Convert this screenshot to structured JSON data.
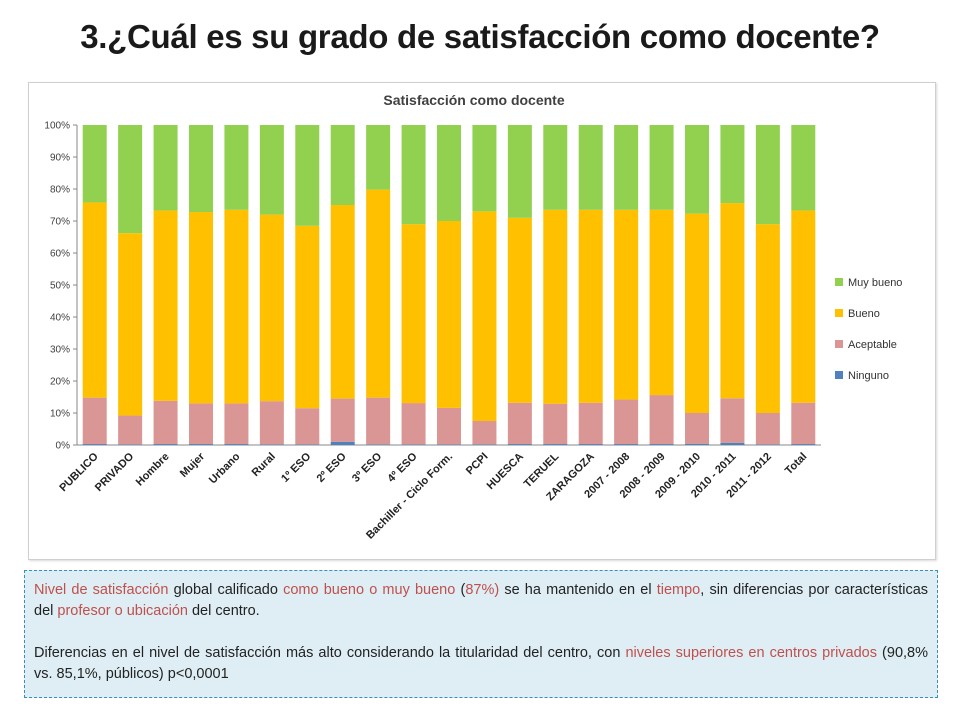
{
  "slide": {
    "title": "3.¿Cuál es su grado de satisfacción como docente?"
  },
  "chart_data": {
    "type": "bar",
    "stacked": true,
    "percent": true,
    "title": "Satisfacción como docente",
    "categories": [
      "PUBLICO",
      "PRIVADO",
      "Hombre",
      "Mujer",
      "Urbano",
      "Rural",
      "1º ESO",
      "2º ESO",
      "3º ESO",
      "4º ESO",
      "Bachiller - Ciclo Form.",
      "PCPI",
      "HUESCA",
      "TERUEL",
      "ZARAGOZA",
      "2007 - 2008",
      "2008 - 2009",
      "2009 - 2010",
      "2010 - 2011",
      "2011 - 2012",
      "Total"
    ],
    "series": [
      {
        "name": "Ninguno",
        "color": "#4f81bd",
        "values": [
          0.3,
          0.2,
          0.3,
          0.3,
          0.3,
          0.2,
          0.2,
          1.0,
          0.2,
          0.2,
          0.2,
          0.2,
          0.3,
          0.3,
          0.3,
          0.3,
          0.3,
          0.4,
          0.7,
          0.2,
          0.3
        ]
      },
      {
        "name": "Aceptable",
        "color": "#d99694",
        "values": [
          14.5,
          9.0,
          13.5,
          12.7,
          12.7,
          13.5,
          11.3,
          13.5,
          14.6,
          12.9,
          11.4,
          7.3,
          12.9,
          12.6,
          12.9,
          13.9,
          15.3,
          9.6,
          13.9,
          9.8,
          12.9
        ]
      },
      {
        "name": "Bueno",
        "color": "#ffc000",
        "values": [
          61.0,
          57.0,
          59.5,
          59.8,
          60.5,
          58.3,
          57.0,
          60.5,
          65.0,
          55.9,
          58.4,
          65.5,
          57.8,
          60.6,
          60.3,
          59.3,
          57.9,
          62.3,
          61.0,
          59.0,
          60.1
        ]
      },
      {
        "name": "Muy bueno",
        "color": "#92d050",
        "values": [
          24.2,
          33.8,
          26.7,
          27.2,
          26.5,
          28.0,
          31.5,
          25.0,
          20.2,
          31.0,
          30.0,
          27.0,
          29.0,
          26.5,
          26.5,
          26.5,
          26.5,
          27.7,
          24.4,
          31.0,
          26.7
        ]
      }
    ],
    "ylim": [
      0,
      100
    ],
    "yticks": [
      "0%",
      "10%",
      "20%",
      "30%",
      "40%",
      "50%",
      "60%",
      "70%",
      "80%",
      "90%",
      "100%"
    ],
    "grid": false,
    "legend_position": "right",
    "legend_order": [
      "Muy bueno",
      "Bueno",
      "Aceptable",
      "Ninguno"
    ]
  },
  "note": {
    "p1": [
      {
        "text": "Nivel de satisfacción",
        "hl": true
      },
      {
        "text": " global calificado ",
        "hl": false
      },
      {
        "text": "como bueno o muy bueno",
        "hl": true
      },
      {
        "text": " (",
        "hl": false
      },
      {
        "text": "87%)",
        "hl": true
      },
      {
        "text": " se ha mantenido en el ",
        "hl": false
      },
      {
        "text": "tiempo",
        "hl": true
      },
      {
        "text": ", sin diferencias por características del ",
        "hl": false
      },
      {
        "text": "profesor o ubicación",
        "hl": true
      },
      {
        "text": " del centro.",
        "hl": false
      }
    ],
    "p2": [
      {
        "text": "Diferencias en el nivel de satisfacción más alto considerando la titularidad del centro, con ",
        "hl": false
      },
      {
        "text": "niveles superiores en centros privados",
        "hl": true
      },
      {
        "text": " (90,8% vs. 85,1%, públicos) p<0,0001",
        "hl": false
      }
    ]
  }
}
